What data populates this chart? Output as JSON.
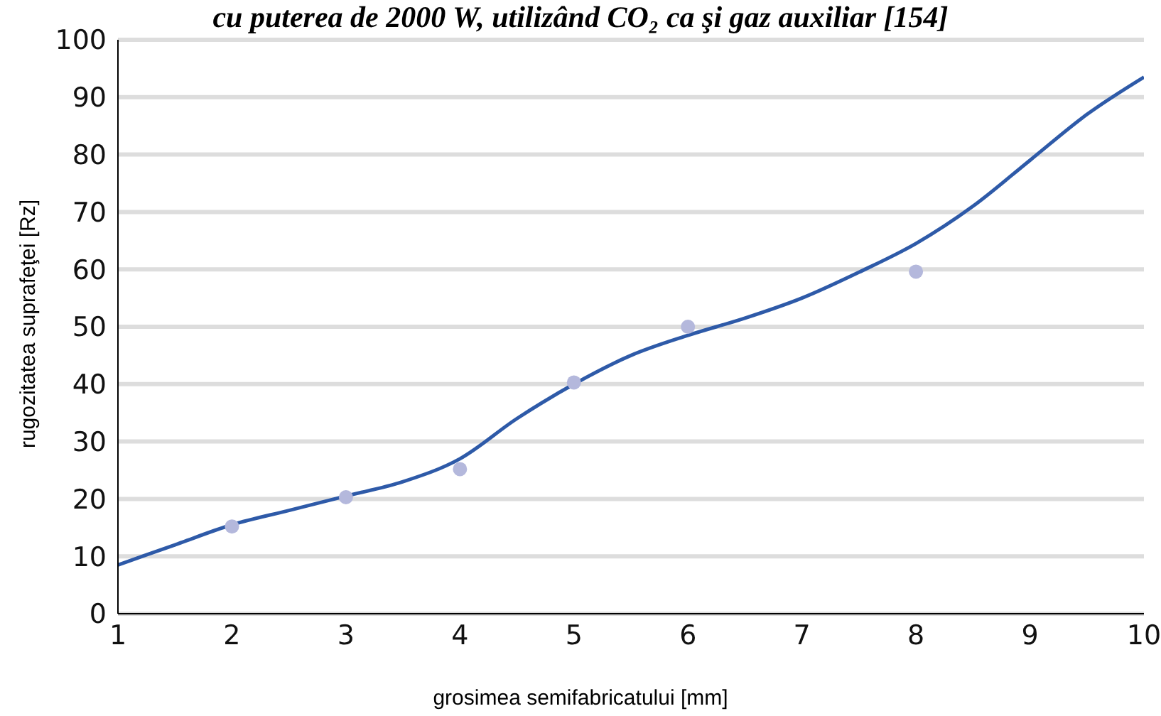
{
  "chart_data": {
    "type": "line",
    "title": "cu puterea de 2000 W, utilizând CO₂ ca şi gaz auxiliar [154]",
    "xlabel": "grosimea semifabricatului [mm]",
    "ylabel": "rugozitatea suprafeţei [Rz]",
    "xlim": [
      1,
      10
    ],
    "xticks": [
      1,
      2,
      3,
      4,
      5,
      6,
      7,
      8,
      9,
      10
    ],
    "ylim": [
      0,
      100
    ],
    "yticks": [
      0,
      10,
      20,
      30,
      40,
      50,
      60,
      70,
      80,
      90,
      100
    ],
    "grid": "y",
    "line_style": "solid",
    "series": [
      {
        "color": "#2e5aa8",
        "x": [
          1,
          1.5,
          2,
          2.5,
          3,
          3.5,
          4,
          4.5,
          5,
          5.5,
          6,
          6.5,
          7,
          7.5,
          8,
          8.5,
          9,
          9.5,
          10
        ],
        "values": [
          8.5,
          12,
          15.5,
          18,
          20.5,
          23,
          27,
          34,
          40,
          45,
          48.5,
          51.5,
          55,
          59.5,
          64.5,
          71,
          79,
          87,
          93.5
        ]
      },
      {
        "type": "scatter",
        "color": "#b4b8dc",
        "marker": "circle",
        "x": [
          2,
          3,
          4,
          5,
          6,
          8
        ],
        "values": [
          15.2,
          20.3,
          25.2,
          40.3,
          50,
          59.6
        ]
      }
    ]
  }
}
